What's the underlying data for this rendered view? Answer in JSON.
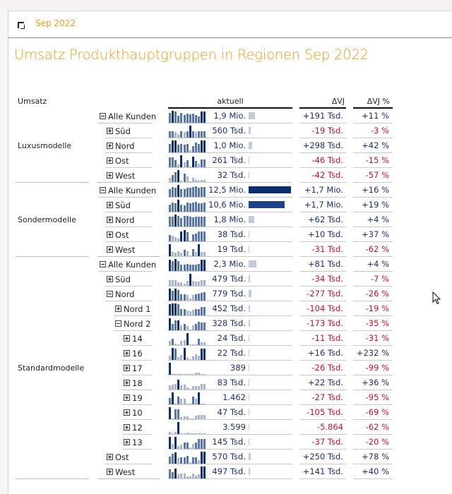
{
  "toolbar": {
    "icon": "corner-bracket-icon",
    "label": "Sep 2022"
  },
  "title": "Umsatz Produkthauptgruppen in Regionen Sep 2022",
  "headers": {
    "measure": "Umsatz",
    "aktuell": "aktuell",
    "dvj": "ΔVJ",
    "dvjp": "ΔVJ %"
  },
  "colors": {
    "accent": "#f39a1e",
    "dark_bar": "#0b2e6f",
    "mid_bar": "#2e4f8a",
    "light_bar": "#a9b5cc",
    "neg": "#c0122c",
    "pos": "#1f2f6b"
  },
  "groups": [
    {
      "label": "Luxusmodelle",
      "first_row": 0,
      "row_count": 5
    },
    {
      "label": "Sondermodelle",
      "first_row": 5,
      "row_count": 5
    },
    {
      "label": "Standardmodelle",
      "first_row": 10,
      "row_count": 15
    }
  ],
  "rows": [
    {
      "label": "Alle Kunden",
      "toggle": "minus",
      "level": 0,
      "value": "1,9 Mio.",
      "share": 0.15,
      "dvj": "+191 Tsd.",
      "dvjp": "+11 %",
      "neg": false,
      "spark": [
        0.8,
        1,
        0.95,
        0.6,
        0.85,
        0.65,
        0.75,
        0.7,
        0.75,
        0.65,
        0.5,
        0.95,
        0.95
      ],
      "hi": [
        1,
        11,
        12
      ]
    },
    {
      "label": "Süd",
      "toggle": "plus",
      "level": 1,
      "value": "560 Tsd.",
      "share": 0.045,
      "dvj": "-19 Tsd.",
      "dvjp": "-3 %",
      "neg": true,
      "spark": [
        0.55,
        0.55,
        0.45,
        0.3,
        0.5,
        0.45,
        0.5,
        1,
        0.55,
        0.45,
        0.5,
        0.5,
        0.5
      ],
      "hi": [
        7
      ]
    },
    {
      "label": "Nord",
      "toggle": "plus",
      "level": 1,
      "value": "1,0 Mio.",
      "share": 0.08,
      "dvj": "+298 Tsd.",
      "dvjp": "+42 %",
      "neg": false,
      "spark": [
        0.7,
        1,
        1,
        0.65,
        0.7,
        0.65,
        0.7,
        0.15,
        0.55,
        0.85,
        0.7,
        1,
        1
      ],
      "hi": [
        1,
        2,
        11,
        12
      ]
    },
    {
      "label": "Ost",
      "toggle": "plus",
      "level": 1,
      "value": "261 Tsd.",
      "share": 0.022,
      "dvj": "-46 Tsd.",
      "dvjp": "-15 %",
      "neg": true,
      "spark": [
        0.85,
        0.85,
        0.6,
        0.25,
        1,
        0.4,
        0.6,
        0.05,
        0.9,
        0.5,
        0.3,
        0.65,
        0.65
      ],
      "hi": [
        4,
        8
      ]
    },
    {
      "label": "West",
      "toggle": "plus",
      "level": 1,
      "value": "32 Tsd.",
      "share": 0.003,
      "dvj": "-42 Tsd.",
      "dvjp": "-57 %",
      "neg": true,
      "spark": [
        0.35,
        0.6,
        0.85,
        1,
        0.1,
        0.7,
        0.45,
        0.05,
        0.35,
        0.15,
        0.1,
        0.2,
        0.2
      ],
      "hi": [
        3
      ]
    },
    {
      "label": "Alle Kunden",
      "toggle": "minus",
      "level": 0,
      "value": "12,5 Mio.",
      "share": 1.0,
      "dvj": "+1,7 Mio.",
      "dvjp": "+16 %",
      "neg": false,
      "spark": [
        0.65,
        0.8,
        0.75,
        1,
        0.65,
        0.65,
        0.75,
        0.75,
        0.8,
        0.9,
        0.75,
        0.8,
        0.8
      ],
      "hi": [
        3
      ]
    },
    {
      "label": "Süd",
      "toggle": "plus",
      "level": 1,
      "value": "10,6 Mio.",
      "share": 0.85,
      "dvj": "+1,7 Mio.",
      "dvjp": "+19 %",
      "neg": false,
      "spark": [
        0.6,
        0.75,
        0.7,
        1,
        0.6,
        0.55,
        0.75,
        0.7,
        0.75,
        0.8,
        0.7,
        0.7,
        0.75
      ],
      "hi": [
        3
      ]
    },
    {
      "label": "Nord",
      "toggle": "plus",
      "level": 1,
      "value": "1,8 Mio.",
      "share": 0.14,
      "dvj": "+62 Tsd.",
      "dvjp": "+4 %",
      "neg": false,
      "spark": [
        0.8,
        0.85,
        1,
        0.9,
        0.7,
        0.9,
        0.9,
        0.8,
        0.75,
        0.8,
        0.85,
        0.85,
        0.85
      ],
      "hi": [
        2
      ]
    },
    {
      "label": "Ost",
      "toggle": "plus",
      "level": 1,
      "value": "38 Tsd.",
      "share": 0.003,
      "dvj": "+10 Tsd.",
      "dvjp": "+37 %",
      "neg": false,
      "spark": [
        0.5,
        0.45,
        0.35,
        0.25,
        0.8,
        0.95,
        0.75,
        0.05,
        0.6,
        0.65,
        0.8,
        0.8,
        0.8
      ],
      "hi": [
        4,
        5
      ]
    },
    {
      "label": "West",
      "toggle": "plus",
      "level": 1,
      "value": "19 Tsd.",
      "share": 0.0015,
      "dvj": "-31 Tsd.",
      "dvjp": "-62 %",
      "neg": true,
      "spark": [
        1,
        0.35,
        0.3,
        0.4,
        0.3,
        0.5,
        0.4,
        0.05,
        0.6,
        0.35,
        1,
        0.35,
        0.35
      ],
      "hi": [
        0,
        10
      ]
    },
    {
      "label": "Alle Kunden",
      "toggle": "minus",
      "level": 0,
      "value": "2,3 Mio.",
      "share": 0.18,
      "dvj": "+81 Tsd.",
      "dvjp": "+4 %",
      "neg": false,
      "spark": [
        0.95,
        0.8,
        1,
        0.85,
        0.55,
        0.55,
        0.6,
        0.55,
        0.55,
        0.55,
        0.6,
        0.95,
        0.95
      ],
      "hi": [
        0,
        2,
        11,
        12
      ]
    },
    {
      "label": "Süd",
      "toggle": "plus",
      "level": 1,
      "value": "479 Tsd.",
      "share": 0.04,
      "dvj": "-34 Tsd.",
      "dvjp": "-7 %",
      "neg": true,
      "spark": [
        0.45,
        0.45,
        0.45,
        0.3,
        0.3,
        0.2,
        0.4,
        1,
        0.4,
        0.35,
        0.35,
        0.45,
        0.45
      ],
      "hi": [
        7
      ]
    },
    {
      "label": "Nord",
      "toggle": "minus",
      "level": 1,
      "value": "779 Tsd.",
      "share": 0.06,
      "dvj": "-277 Tsd.",
      "dvjp": "-26 %",
      "neg": true,
      "spark": [
        1,
        0.85,
        1,
        0.9,
        0.5,
        0.5,
        0.45,
        0.2,
        0.45,
        0.5,
        0.6,
        0.65,
        0.7
      ],
      "hi": [
        0,
        2
      ]
    },
    {
      "label": "Nord 1",
      "toggle": "plus",
      "level": 2,
      "value": "452 Tsd.",
      "share": 0.035,
      "dvj": "-104 Tsd.",
      "dvjp": "-19 %",
      "neg": true,
      "spark": [
        0.95,
        1,
        1,
        0.95,
        0.5,
        0.5,
        0.4,
        0.35,
        0.45,
        0.55,
        0.55,
        0.7,
        0.7
      ],
      "hi": [
        0,
        1,
        2
      ]
    },
    {
      "label": "Nord 2",
      "toggle": "minus",
      "level": 2,
      "value": "328 Tsd.",
      "share": 0.025,
      "dvj": "-173 Tsd.",
      "dvjp": "-35 %",
      "neg": true,
      "spark": [
        1,
        0.55,
        0.8,
        0.85,
        0.4,
        0.5,
        0.35,
        0.05,
        0.4,
        0.5,
        0.7,
        0.65,
        0.65
      ],
      "hi": [
        0,
        3
      ]
    },
    {
      "label": "14",
      "toggle": "plus",
      "level": 3,
      "value": "24 Tsd.",
      "share": 0.002,
      "dvj": "-11 Tsd.",
      "dvjp": "-31 %",
      "neg": true,
      "spark": [
        0.35,
        0.55,
        0.1,
        0.05,
        0.35,
        0.4,
        1,
        0.05,
        0.05,
        0.05,
        0.55,
        0.25,
        0.25
      ],
      "hi": [
        6
      ]
    },
    {
      "label": "16",
      "toggle": "plus",
      "level": 3,
      "value": "22 Tsd.",
      "share": 0.002,
      "dvj": "+16 Tsd.",
      "dvjp": "+232 %",
      "neg": false,
      "spark": [
        0.35,
        1,
        0.95,
        0.25,
        0.4,
        1,
        -0.15,
        0.05,
        0.3,
        0.45,
        0.35,
        0.95,
        0.95
      ],
      "hi": [
        1,
        5,
        11,
        12
      ]
    },
    {
      "label": "17",
      "toggle": "plus",
      "level": 3,
      "value": "389",
      "share": 0.0001,
      "dvj": "-26 Tsd.",
      "dvjp": "-99 %",
      "neg": true,
      "spark": [
        1,
        0.05,
        0.05,
        0.05,
        0.05,
        0.05,
        0.05,
        0.05,
        0.05,
        0.2,
        0.2,
        0.05,
        0.05
      ],
      "hi": [
        0
      ]
    },
    {
      "label": "18",
      "toggle": "plus",
      "level": 3,
      "value": "83 Tsd.",
      "share": 0.006,
      "dvj": "+22 Tsd.",
      "dvjp": "+36 %",
      "neg": false,
      "spark": [
        0.35,
        0.4,
        0.45,
        0.85,
        0.35,
        0.4,
        0.2,
        0.05,
        0.3,
        0.3,
        0.3,
        0.45,
        0.45
      ],
      "hi": [
        3
      ]
    },
    {
      "label": "19",
      "toggle": "plus",
      "level": 3,
      "value": "1.462",
      "share": 0.0001,
      "dvj": "-27 Tsd.",
      "dvjp": "-95 %",
      "neg": true,
      "spark": [
        0.5,
        1,
        0.05,
        0.65,
        0.45,
        0.45,
        0.05,
        0.05,
        0.65,
        0.45,
        1,
        0.05,
        0.05
      ],
      "hi": [
        1,
        10
      ]
    },
    {
      "label": "10",
      "toggle": "plus",
      "level": 3,
      "value": "47 Tsd.",
      "share": 0.004,
      "dvj": "-105 Tsd.",
      "dvjp": "-69 %",
      "neg": true,
      "spark": [
        1,
        0.05,
        0.8,
        0.8,
        0.2,
        0.25,
        0.25,
        0.05,
        0.05,
        0.3,
        0.35,
        0.35,
        0.35
      ],
      "hi": [
        0
      ]
    },
    {
      "label": "12",
      "toggle": "plus",
      "level": 3,
      "value": "3.599",
      "share": 0.0003,
      "dvj": "-5.864",
      "dvjp": "-62 %",
      "neg": true,
      "spark": [
        0.2,
        0.05,
        0.2,
        1,
        0.05,
        0.05,
        0.1,
        0.05,
        0.05,
        0.05,
        0.05,
        0.05,
        0.05
      ],
      "hi": [
        3
      ]
    },
    {
      "label": "13",
      "toggle": "plus",
      "level": 3,
      "value": "145 Tsd.",
      "share": 0.012,
      "dvj": "-37 Tsd.",
      "dvjp": "-20 %",
      "neg": true,
      "spark": [
        1,
        0.4,
        1,
        0.25,
        0.35,
        0.5,
        0.55,
        0.1,
        0.4,
        0.5,
        0.8,
        0.8,
        0.8
      ],
      "hi": [
        0,
        2
      ]
    },
    {
      "label": "Ost",
      "toggle": "plus",
      "level": 1,
      "value": "570 Tsd.",
      "share": 0.045,
      "dvj": "+250 Tsd.",
      "dvjp": "+78 %",
      "neg": false,
      "spark": [
        0.6,
        0.8,
        0.95,
        0.45,
        0.55,
        0.55,
        0.65,
        0.1,
        0.55,
        0.55,
        0.3,
        1,
        1
      ],
      "hi": [
        2,
        11,
        12
      ]
    },
    {
      "label": "West",
      "toggle": "plus",
      "level": 1,
      "value": "497 Tsd.",
      "share": 0.04,
      "dvj": "+141 Tsd.",
      "dvjp": "+40 %",
      "neg": false,
      "spark": [
        0.75,
        0.55,
        0.8,
        0.35,
        0.4,
        0.4,
        0.15,
        0.15,
        0.4,
        0.25,
        0.35,
        1,
        1
      ],
      "hi": [
        2,
        11,
        12
      ]
    }
  ]
}
